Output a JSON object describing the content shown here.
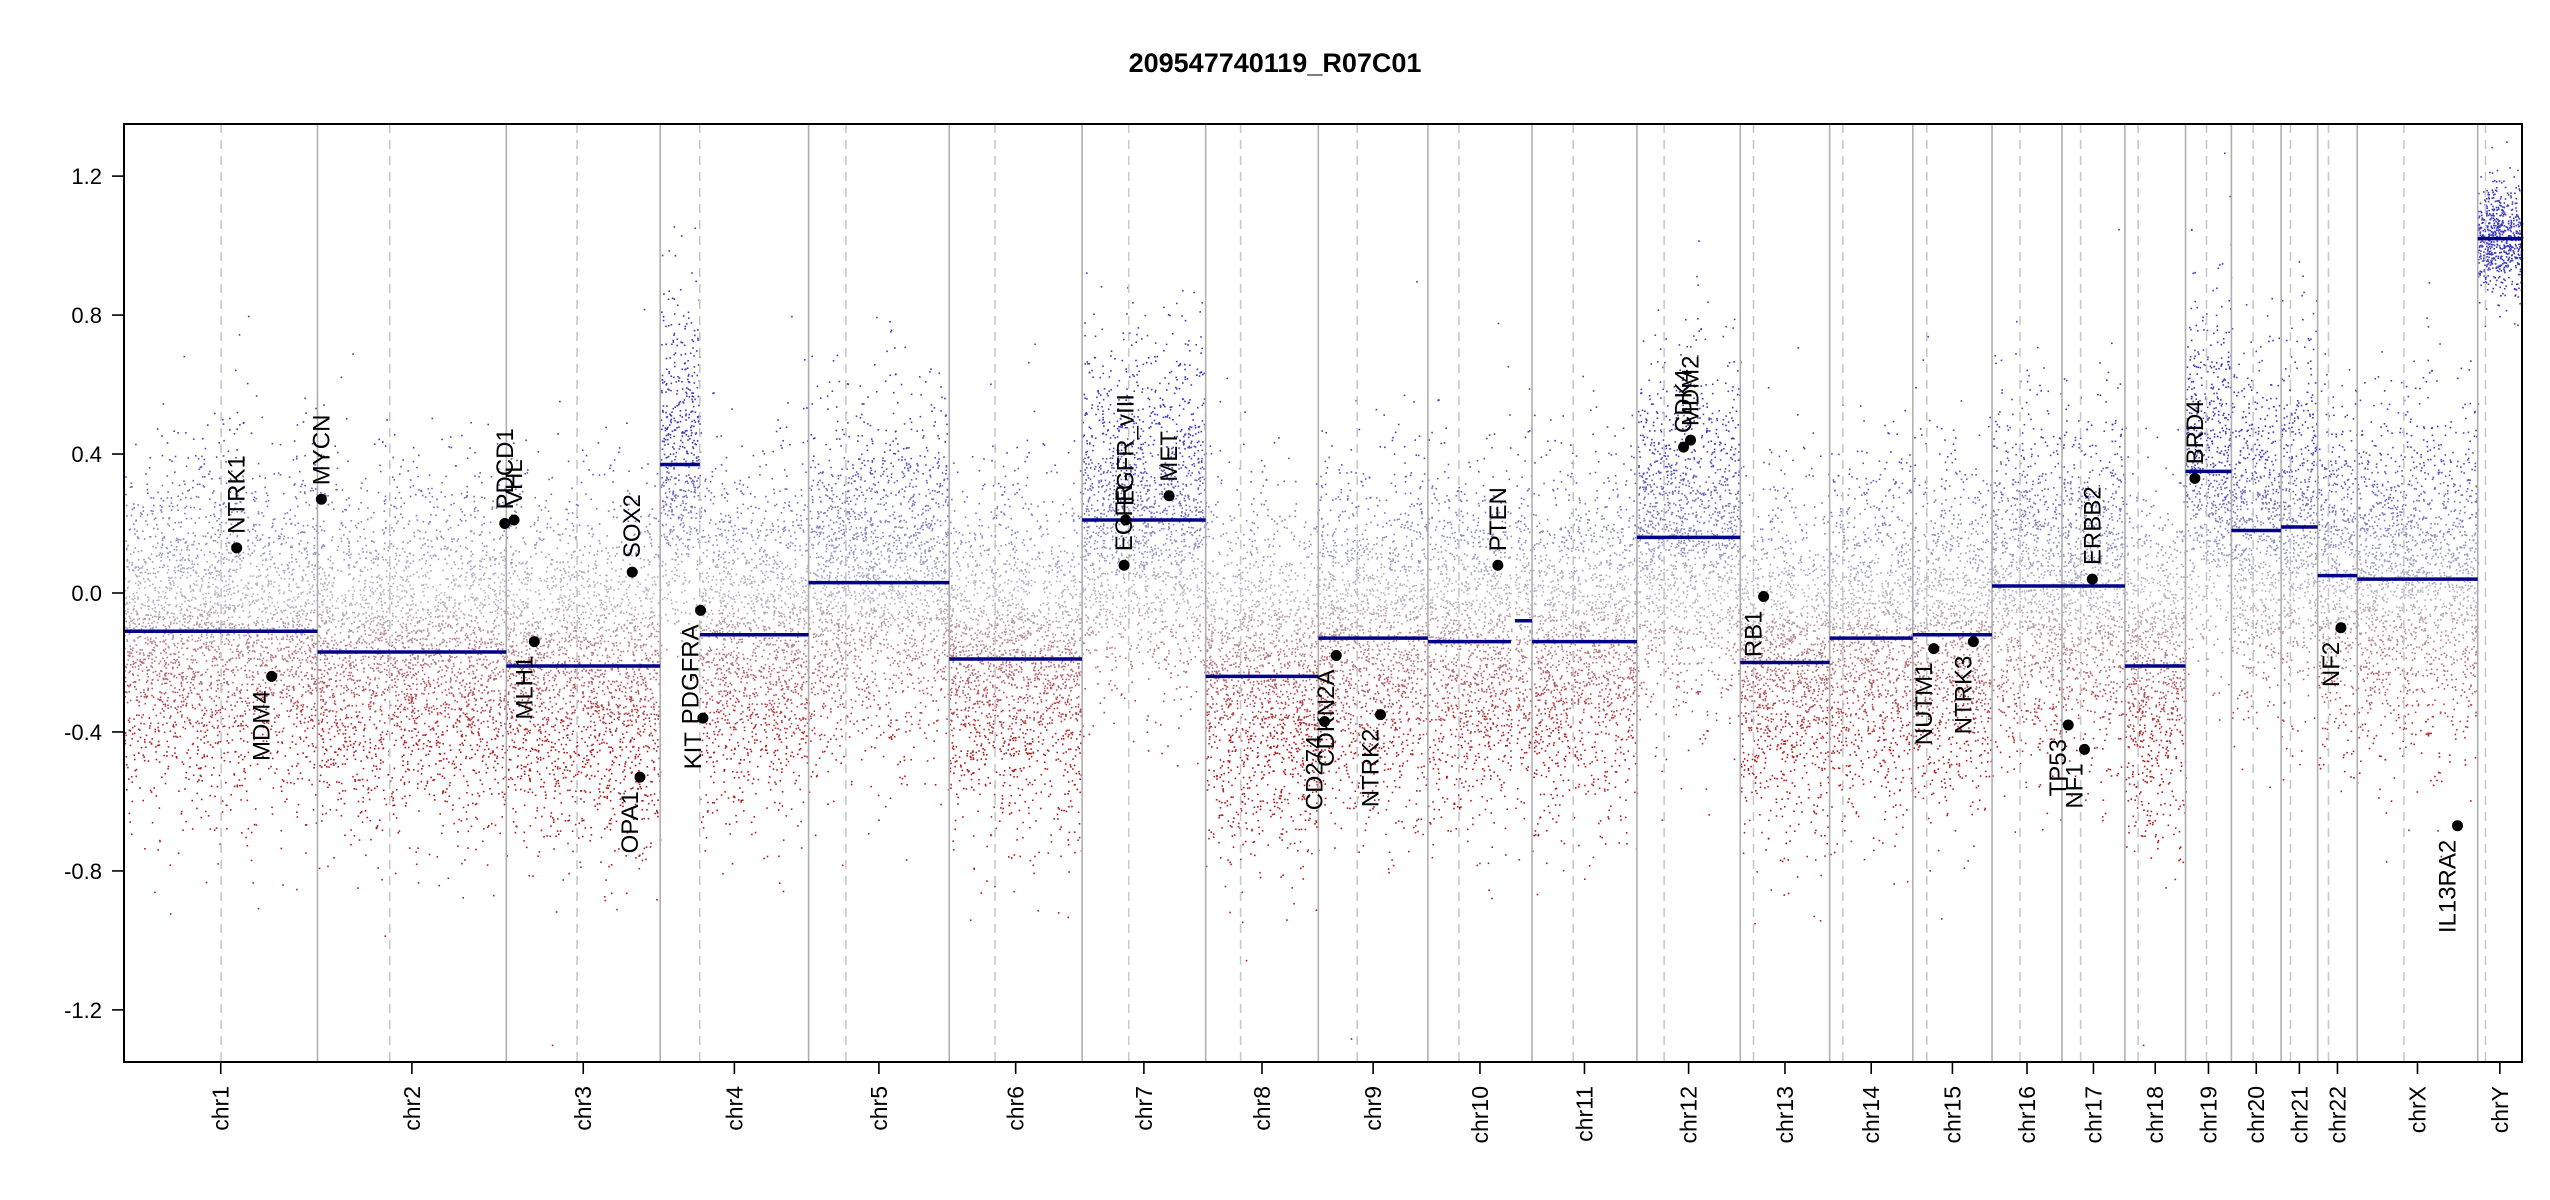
{
  "chart_data": {
    "type": "scatter",
    "title": "209547740119_R07C01",
    "xlabel": "",
    "ylabel": "",
    "ylim": [
      -1.35,
      1.35
    ],
    "y_ticks": [
      -1.2,
      -0.8,
      -0.4,
      0.0,
      0.4,
      0.8,
      1.2
    ],
    "y_tick_labels": [
      "-1.2",
      "-0.8",
      "-0.4",
      "0.0",
      "0.4",
      "0.8",
      "1.2"
    ],
    "grid": false,
    "chromosomes": [
      {
        "name": "chr1",
        "label": "chr1",
        "start": 0,
        "end": 249,
        "centromere": 125
      },
      {
        "name": "chr2",
        "label": "chr2",
        "start": 249,
        "end": 492,
        "centromere": 342
      },
      {
        "name": "chr3",
        "label": "chr3",
        "start": 492,
        "end": 690,
        "centromere": 583
      },
      {
        "name": "chr4",
        "label": "chr4",
        "start": 690,
        "end": 881,
        "centromere": 741
      },
      {
        "name": "chr5",
        "label": "chr5",
        "start": 881,
        "end": 1062,
        "centromere": 929
      },
      {
        "name": "chr6",
        "label": "chr6",
        "start": 1062,
        "end": 1233,
        "centromere": 1121
      },
      {
        "name": "chr7",
        "label": "chr7",
        "start": 1233,
        "end": 1392,
        "centromere": 1293
      },
      {
        "name": "chr8",
        "label": "chr8",
        "start": 1392,
        "end": 1537,
        "centromere": 1437
      },
      {
        "name": "chr9",
        "label": "chr9",
        "start": 1537,
        "end": 1678,
        "centromere": 1587
      },
      {
        "name": "chr10",
        "label": "chr10",
        "start": 1678,
        "end": 1812,
        "centromere": 1718
      },
      {
        "name": "chr11",
        "label": "chr11",
        "start": 1812,
        "end": 1947,
        "centromere": 1865
      },
      {
        "name": "chr12",
        "label": "chr12",
        "start": 1947,
        "end": 2080,
        "centromere": 1982
      },
      {
        "name": "chr13",
        "label": "chr13",
        "start": 2080,
        "end": 2195,
        "centromere": 2097
      },
      {
        "name": "chr14",
        "label": "chr14",
        "start": 2195,
        "end": 2302,
        "centromere": 2212
      },
      {
        "name": "chr15",
        "label": "chr15",
        "start": 2302,
        "end": 2404,
        "centromere": 2320
      },
      {
        "name": "chr16",
        "label": "chr16",
        "start": 2404,
        "end": 2494,
        "centromere": 2440
      },
      {
        "name": "chr17",
        "label": "chr17",
        "start": 2494,
        "end": 2575,
        "centromere": 2518
      },
      {
        "name": "chr18",
        "label": "chr18",
        "start": 2575,
        "end": 2653,
        "centromere": 2592
      },
      {
        "name": "chr19",
        "label": "chr19",
        "start": 2653,
        "end": 2712,
        "centromere": 2680
      },
      {
        "name": "chr20",
        "label": "chr20",
        "start": 2712,
        "end": 2776,
        "centromere": 2740
      },
      {
        "name": "chr21",
        "label": "chr21",
        "start": 2776,
        "end": 2823,
        "centromere": 2788
      },
      {
        "name": "chr22",
        "label": "chr22",
        "start": 2823,
        "end": 2874,
        "centromere": 2837
      },
      {
        "name": "chrX",
        "label": "chrX",
        "start": 2874,
        "end": 3029,
        "centromere": 2934
      },
      {
        "name": "chrY",
        "label": "chrY",
        "start": 3029,
        "end": 3086,
        "centromere": 3039
      }
    ],
    "segments": [
      {
        "chr": "chr1",
        "x0": 0,
        "x1": 249,
        "y": -0.11
      },
      {
        "chr": "chr2",
        "x0": 249,
        "x1": 492,
        "y": -0.17
      },
      {
        "chr": "chr3",
        "x0": 492,
        "x1": 690,
        "y": -0.21
      },
      {
        "chr": "chr4",
        "x0": 690,
        "x1": 741,
        "y": 0.37
      },
      {
        "chr": "chr4",
        "x0": 741,
        "x1": 881,
        "y": -0.12
      },
      {
        "chr": "chr5",
        "x0": 881,
        "x1": 1062,
        "y": 0.03
      },
      {
        "chr": "chr6",
        "x0": 1062,
        "x1": 1233,
        "y": -0.19
      },
      {
        "chr": "chr7",
        "x0": 1233,
        "x1": 1392,
        "y": 0.21
      },
      {
        "chr": "chr8",
        "x0": 1392,
        "x1": 1537,
        "y": -0.24
      },
      {
        "chr": "chr9",
        "x0": 1537,
        "x1": 1678,
        "y": -0.13
      },
      {
        "chr": "chr10",
        "x0": 1678,
        "x1": 1785,
        "y": -0.14
      },
      {
        "chr": "chr10",
        "x0": 1790,
        "x1": 1812,
        "y": -0.08
      },
      {
        "chr": "chr11",
        "x0": 1812,
        "x1": 1947,
        "y": -0.14
      },
      {
        "chr": "chr12",
        "x0": 1947,
        "x1": 2080,
        "y": 0.16
      },
      {
        "chr": "chr13",
        "x0": 2080,
        "x1": 2195,
        "y": -0.2
      },
      {
        "chr": "chr14",
        "x0": 2195,
        "x1": 2302,
        "y": -0.13
      },
      {
        "chr": "chr15",
        "x0": 2302,
        "x1": 2404,
        "y": -0.12
      },
      {
        "chr": "chr16",
        "x0": 2404,
        "x1": 2494,
        "y": 0.02
      },
      {
        "chr": "chr17",
        "x0": 2494,
        "x1": 2575,
        "y": 0.02
      },
      {
        "chr": "chr18",
        "x0": 2575,
        "x1": 2653,
        "y": -0.21
      },
      {
        "chr": "chr19",
        "x0": 2653,
        "x1": 2712,
        "y": 0.35
      },
      {
        "chr": "chr20",
        "x0": 2712,
        "x1": 2776,
        "y": 0.18
      },
      {
        "chr": "chr21",
        "x0": 2776,
        "x1": 2823,
        "y": 0.19
      },
      {
        "chr": "chr22",
        "x0": 2823,
        "x1": 2874,
        "y": 0.05
      },
      {
        "chr": "chrX",
        "x0": 2874,
        "x1": 3029,
        "y": 0.04
      },
      {
        "chr": "chrY",
        "x0": 3029,
        "x1": 3086,
        "y": 1.02
      }
    ],
    "genes": [
      {
        "name": "NTRK1",
        "x": 145,
        "y": 0.13,
        "label_side": "above"
      },
      {
        "name": "MDM4",
        "x": 190,
        "y": -0.24,
        "label_side": "below"
      },
      {
        "name": "MYCN",
        "x": 254,
        "y": 0.27,
        "label_side": "above"
      },
      {
        "name": "PDCD1",
        "x": 490,
        "y": 0.2,
        "label_side": "above"
      },
      {
        "name": "VHL",
        "x": 502,
        "y": 0.21,
        "label_side": "above"
      },
      {
        "name": "MLH1",
        "x": 528,
        "y": -0.14,
        "label_side": "below"
      },
      {
        "name": "SOX2",
        "x": 654,
        "y": 0.06,
        "label_side": "above"
      },
      {
        "name": "OPA1",
        "x": 664,
        "y": -0.53,
        "label_side": "below"
      },
      {
        "name": "PDGFRA",
        "x": 742,
        "y": -0.05,
        "label_side": "below"
      },
      {
        "name": "KIT",
        "x": 745,
        "y": -0.36,
        "label_side": "below"
      },
      {
        "name": "EGFR_vIII",
        "x": 1289,
        "y": 0.21,
        "label_side": "above"
      },
      {
        "name": "EGFR",
        "x": 1287,
        "y": 0.08,
        "label_side": "above"
      },
      {
        "name": "MET",
        "x": 1345,
        "y": 0.28,
        "label_side": "above"
      },
      {
        "name": "CD274",
        "x": 1545,
        "y": -0.37,
        "label_side": "below"
      },
      {
        "name": "CDKN2A",
        "x": 1560,
        "y": -0.18,
        "label_side": "below"
      },
      {
        "name": "NTRK2",
        "x": 1617,
        "y": -0.35,
        "label_side": "below"
      },
      {
        "name": "PTEN",
        "x": 1768,
        "y": 0.08,
        "label_side": "above"
      },
      {
        "name": "CDK4",
        "x": 2007,
        "y": 0.42,
        "label_side": "above"
      },
      {
        "name": "MDM2",
        "x": 2016,
        "y": 0.44,
        "label_side": "above"
      },
      {
        "name": "RB1",
        "x": 2110,
        "y": -0.01,
        "label_side": "below"
      },
      {
        "name": "NUTM1",
        "x": 2329,
        "y": -0.16,
        "label_side": "below"
      },
      {
        "name": "NTRK3",
        "x": 2380,
        "y": -0.14,
        "label_side": "below"
      },
      {
        "name": "TP53",
        "x": 2502,
        "y": -0.38,
        "label_side": "below"
      },
      {
        "name": "NF1",
        "x": 2523,
        "y": -0.45,
        "label_side": "below"
      },
      {
        "name": "ERBB2",
        "x": 2533,
        "y": 0.04,
        "label_side": "above"
      },
      {
        "name": "BRD4",
        "x": 2665,
        "y": 0.33,
        "label_side": "above"
      },
      {
        "name": "NF2",
        "x": 2853,
        "y": -0.1,
        "label_side": "below"
      },
      {
        "name": "IL13RA2",
        "x": 3003,
        "y": -0.67,
        "label_side": "below"
      }
    ],
    "gene_labels": {
      "NTRK1": "NTRK1",
      "MDM4": "MDM4",
      "MYCN": "MYCN",
      "PDCD1": "PDCD1",
      "VHL": "VHL",
      "MLH1": "MLH1",
      "SOX2": "SOX2",
      "OPA1": "OPA1",
      "PDGFRA": "PDGFRA",
      "KIT": "KIT",
      "EGFR_vIII": "EGFR_vIII",
      "EGFR": "EGFR",
      "MET": "MET",
      "CD274": "CD274",
      "CDKN2A": "CDKN2A",
      "NTRK2": "NTRK2",
      "PTEN": "PTEN",
      "CDK4": "CDK4",
      "MDM2": "MDM2",
      "RB1": "RB1",
      "NUTM1": "NUTM1",
      "NTRK3": "NTRK3",
      "TP53": "TP53",
      "NF1": "NF1",
      "ERBB2": "ERBB2",
      "BRD4": "BRD4",
      "NF2": "NF2",
      "IL13RA2": "IL13RA2"
    },
    "colors": {
      "gain_points": "#3b3bbd",
      "loss_points": "#b01818",
      "neutral_points": "#b8b8c4",
      "segment_line": "#00008b",
      "chromosome_border": "#b0b0b0",
      "centromere_line": "#c8c8c8",
      "gene_marker": "#000000",
      "frame": "#000000"
    }
  }
}
